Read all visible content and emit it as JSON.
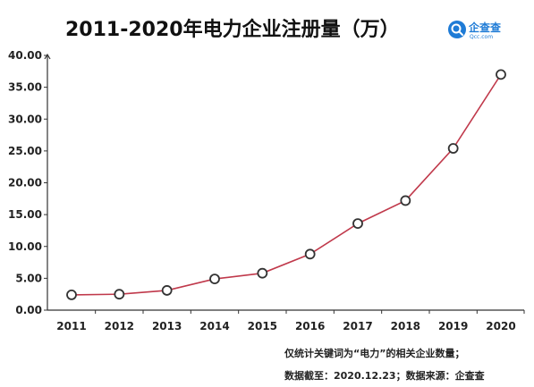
{
  "chart_data": {
    "type": "line",
    "title": "2011-2020年电力企业注册量（万）",
    "xlabel": "",
    "ylabel": "",
    "categories": [
      "2011",
      "2012",
      "2013",
      "2014",
      "2015",
      "2016",
      "2017",
      "2018",
      "2019",
      "2020"
    ],
    "series": [
      {
        "values": [
          2.4,
          2.5,
          3.1,
          4.9,
          5.8,
          8.8,
          13.6,
          17.2,
          25.4,
          37.0
        ]
      }
    ],
    "ylim": [
      0,
      40
    ],
    "yticks": [
      "0.00",
      "5.00",
      "10.00",
      "15.00",
      "20.00",
      "25.00",
      "30.00",
      "35.00",
      "40.00"
    ],
    "grid": false,
    "legend": "none",
    "line_color": "#c0394b",
    "marker_fill": "#ffffff",
    "marker_stroke": "#333333",
    "axis_color": "#333333"
  },
  "logo": {
    "name": "企查查",
    "domain": "Qcc.com",
    "icon": "qcc-search-logo-icon",
    "color": "#1e7bd6"
  },
  "footnote": {
    "line1": "仅统计关键词为“电力”的相关企业数量；",
    "line2": "数据截至：2020.12.23；数据来源：企查查"
  }
}
